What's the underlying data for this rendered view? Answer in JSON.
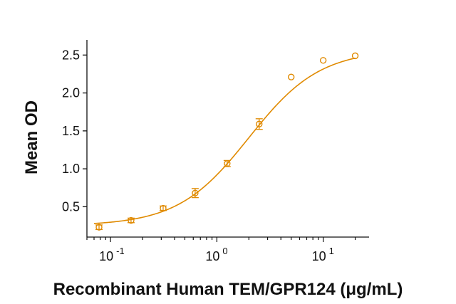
{
  "chart_data": {
    "type": "scatter",
    "title": "",
    "xlabel": "Recombinant Human TEM/GPR124 (μg/mL)",
    "ylabel": "Mean OD",
    "x_scale": "log",
    "xlim": [
      0.06,
      27
    ],
    "ylim": [
      0.1,
      2.7
    ],
    "y_ticks": [
      0.5,
      1.0,
      1.5,
      2.0,
      2.5
    ],
    "y_tick_labels": [
      "0.5",
      "1.0",
      "1.5",
      "2.0",
      "2.5"
    ],
    "x_ticks": [
      {
        "value": 0.1,
        "base": "10",
        "exp": "-1"
      },
      {
        "value": 1,
        "base": "10",
        "exp": "0"
      },
      {
        "value": 10,
        "base": "10",
        "exp": "1"
      }
    ],
    "grid": false,
    "legend": "none",
    "color": "#e08a00",
    "series": [
      {
        "x": [
          0.078,
          0.156,
          0.3125,
          0.625,
          1.25,
          2.5,
          5,
          10,
          20
        ],
        "y": [
          0.23,
          0.32,
          0.48,
          0.68,
          1.07,
          1.59,
          2.21,
          2.43,
          2.49
        ],
        "error": [
          0.03,
          0.03,
          0.03,
          0.06,
          0.04,
          0.07,
          0.0,
          0.0,
          0.0
        ]
      }
    ],
    "fit": {
      "type": "4PL",
      "bottom": 0.25,
      "top": 2.57,
      "ec50": 2.0,
      "hill": 1.3
    }
  }
}
